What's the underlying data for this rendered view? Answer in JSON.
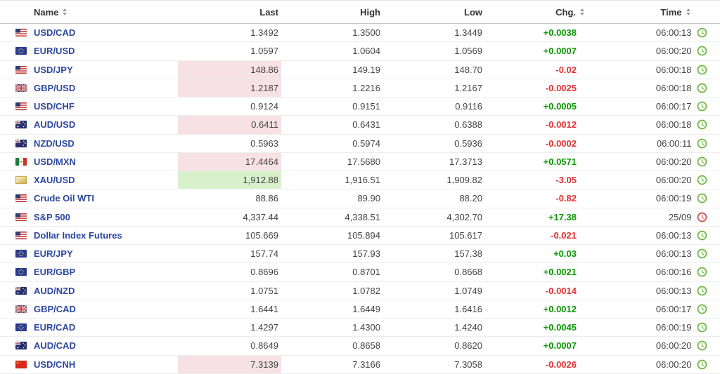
{
  "table": {
    "columns": [
      {
        "label": "Name",
        "sortable": true
      },
      {
        "label": "Last",
        "sortable": false
      },
      {
        "label": "High",
        "sortable": false
      },
      {
        "label": "Low",
        "sortable": false
      },
      {
        "label": "Chg.",
        "sortable": true
      },
      {
        "label": "Time",
        "sortable": true
      }
    ],
    "rows": [
      {
        "name": "USD/CAD",
        "flag": "us",
        "last": "1.3492",
        "high": "1.3500",
        "low": "1.3449",
        "chg": "+0.0038",
        "chg_dir": "up",
        "time": "06:00:13",
        "clock": "green",
        "last_flash": "none"
      },
      {
        "name": "EUR/USD",
        "flag": "eu",
        "last": "1.0597",
        "high": "1.0604",
        "low": "1.0569",
        "chg": "+0.0007",
        "chg_dir": "up",
        "time": "06:00:20",
        "clock": "green",
        "last_flash": "none"
      },
      {
        "name": "USD/JPY",
        "flag": "us",
        "last": "148.86",
        "high": "149.19",
        "low": "148.70",
        "chg": "-0.02",
        "chg_dir": "down",
        "time": "06:00:18",
        "clock": "green",
        "last_flash": "down"
      },
      {
        "name": "GBP/USD",
        "flag": "gb",
        "last": "1.2187",
        "high": "1.2216",
        "low": "1.2167",
        "chg": "-0.0025",
        "chg_dir": "down",
        "time": "06:00:18",
        "clock": "green",
        "last_flash": "down"
      },
      {
        "name": "USD/CHF",
        "flag": "us",
        "last": "0.9124",
        "high": "0.9151",
        "low": "0.9116",
        "chg": "+0.0005",
        "chg_dir": "up",
        "time": "06:00:17",
        "clock": "green",
        "last_flash": "none"
      },
      {
        "name": "AUD/USD",
        "flag": "au",
        "last": "0.6411",
        "high": "0.6431",
        "low": "0.6388",
        "chg": "-0.0012",
        "chg_dir": "down",
        "time": "06:00:18",
        "clock": "green",
        "last_flash": "down"
      },
      {
        "name": "NZD/USD",
        "flag": "nz",
        "last": "0.5963",
        "high": "0.5974",
        "low": "0.5936",
        "chg": "-0.0002",
        "chg_dir": "down",
        "time": "06:00:11",
        "clock": "green",
        "last_flash": "none"
      },
      {
        "name": "USD/MXN",
        "flag": "mx",
        "last": "17.4464",
        "high": "17.5680",
        "low": "17.3713",
        "chg": "+0.0571",
        "chg_dir": "up",
        "time": "06:00:20",
        "clock": "green",
        "last_flash": "down"
      },
      {
        "name": "XAU/USD",
        "flag": "gold",
        "last": "1,912.88",
        "high": "1,916.51",
        "low": "1,909.82",
        "chg": "-3.05",
        "chg_dir": "down",
        "time": "06:00:20",
        "clock": "green",
        "last_flash": "up"
      },
      {
        "name": "Crude Oil WTI",
        "flag": "us",
        "last": "88.86",
        "high": "89.90",
        "low": "88.20",
        "chg": "-0.82",
        "chg_dir": "down",
        "time": "06:00:19",
        "clock": "green",
        "last_flash": "none"
      },
      {
        "name": "S&P 500",
        "flag": "us",
        "last": "4,337.44",
        "high": "4,338.51",
        "low": "4,302.70",
        "chg": "+17.38",
        "chg_dir": "up",
        "time": "25/09",
        "clock": "red",
        "last_flash": "none"
      },
      {
        "name": "Dollar Index Futures",
        "flag": "us",
        "last": "105.669",
        "high": "105.894",
        "low": "105.617",
        "chg": "-0.021",
        "chg_dir": "down",
        "time": "06:00:13",
        "clock": "green",
        "last_flash": "none"
      },
      {
        "name": "EUR/JPY",
        "flag": "eu",
        "last": "157.74",
        "high": "157.93",
        "low": "157.38",
        "chg": "+0.03",
        "chg_dir": "up",
        "time": "06:00:13",
        "clock": "green",
        "last_flash": "none"
      },
      {
        "name": "EUR/GBP",
        "flag": "eu",
        "last": "0.8696",
        "high": "0.8701",
        "low": "0.8668",
        "chg": "+0.0021",
        "chg_dir": "up",
        "time": "06:00:16",
        "clock": "green",
        "last_flash": "none"
      },
      {
        "name": "AUD/NZD",
        "flag": "au",
        "last": "1.0751",
        "high": "1.0782",
        "low": "1.0749",
        "chg": "-0.0014",
        "chg_dir": "down",
        "time": "06:00:13",
        "clock": "green",
        "last_flash": "none"
      },
      {
        "name": "GBP/CAD",
        "flag": "gb",
        "last": "1.6441",
        "high": "1.6449",
        "low": "1.6416",
        "chg": "+0.0012",
        "chg_dir": "up",
        "time": "06:00:17",
        "clock": "green",
        "last_flash": "none"
      },
      {
        "name": "EUR/CAD",
        "flag": "eu",
        "last": "1.4297",
        "high": "1.4300",
        "low": "1.4240",
        "chg": "+0.0045",
        "chg_dir": "up",
        "time": "06:00:19",
        "clock": "green",
        "last_flash": "none"
      },
      {
        "name": "AUD/CAD",
        "flag": "au",
        "last": "0.8649",
        "high": "0.8658",
        "low": "0.8620",
        "chg": "+0.0007",
        "chg_dir": "up",
        "time": "06:00:20",
        "clock": "green",
        "last_flash": "none"
      },
      {
        "name": "USD/CNH",
        "flag": "cn",
        "last": "7.3139",
        "high": "7.3166",
        "low": "7.3058",
        "chg": "-0.0026",
        "chg_dir": "down",
        "time": "06:00:20",
        "clock": "green",
        "last_flash": "down"
      }
    ]
  },
  "colors": {
    "link": "#2c479f",
    "up": "#0a9600",
    "down": "#e03030",
    "flash_down_bg": "#f6e1e4",
    "flash_up_bg": "#d9f0cd",
    "clock_green": "#6cb83f",
    "clock_red": "#cf4a4a"
  }
}
